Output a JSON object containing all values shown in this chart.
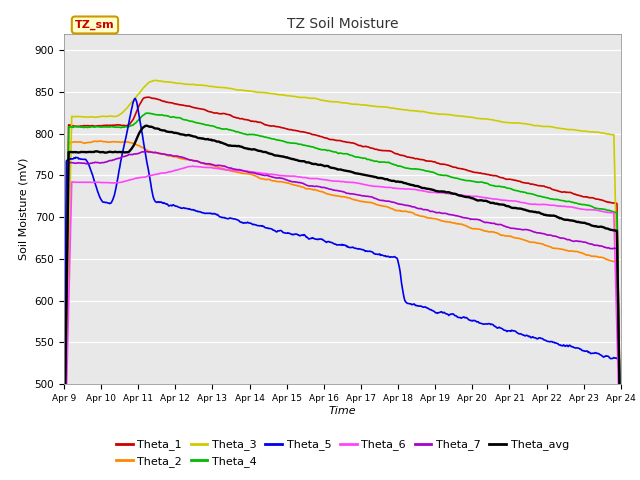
{
  "title": "TZ Soil Moisture",
  "xlabel": "Time",
  "ylabel": "Soil Moisture (mV)",
  "ylim": [
    500,
    920
  ],
  "yticks": [
    500,
    550,
    600,
    650,
    700,
    750,
    800,
    850,
    900
  ],
  "x_labels": [
    "Apr 9",
    "Apr 10",
    "Apr 11",
    "Apr 12",
    "Apr 13",
    "Apr 14",
    "Apr 15",
    "Apr 16",
    "Apr 17",
    "Apr 18",
    "Apr 19",
    "Apr 20",
    "Apr 21",
    "Apr 22",
    "Apr 23",
    "Apr 24"
  ],
  "bg_color": "#e8e8e8",
  "series_colors": {
    "Theta_1": "#cc0000",
    "Theta_2": "#ff8800",
    "Theta_3": "#cccc00",
    "Theta_4": "#00bb00",
    "Theta_5": "#0000ee",
    "Theta_6": "#ff44ff",
    "Theta_7": "#aa00cc",
    "Theta_avg": "#000000"
  },
  "legend_label": "TZ_sm",
  "legend_label_color": "#cc0000",
  "legend_box_facecolor": "#ffffcc",
  "legend_box_edgecolor": "#cc9900"
}
